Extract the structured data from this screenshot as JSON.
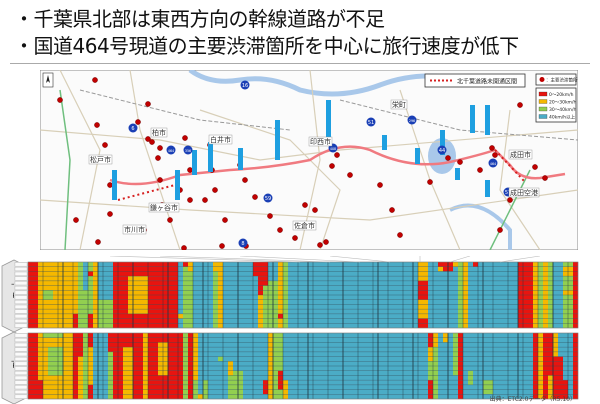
{
  "bullets": [
    "・千葉県北部は東西方向の幹線道路が不足",
    "・国道464号現道の主要渋滞箇所を中心に旅行速度が低下"
  ],
  "map": {
    "legend_unopened": "北千葉道路未開通区間",
    "legend_congestion": "主要渋滞箇所",
    "cities": [
      "松戸市",
      "柏市",
      "白井市",
      "印西市",
      "栄町",
      "成田市",
      "鎌ヶ谷市",
      "市川市",
      "佐倉市",
      "成田空港"
    ],
    "route_numbers": [
      "6",
      "16",
      "464",
      "356",
      "408",
      "51",
      "296",
      "44",
      "464",
      "57",
      "8",
      "59"
    ],
    "colors": {
      "route_line": "#f07a80",
      "congestion_dot": "#c00000",
      "intersection_label": "#1e9fe0",
      "shield": "#1a3fb5"
    }
  },
  "chart_data": {
    "type": "heatmap",
    "speed_legend": [
      {
        "label": "0～20km/h",
        "code": "R",
        "color": "#e8140f"
      },
      {
        "label": "20～30km/h",
        "code": "O",
        "color": "#f5b800"
      },
      {
        "label": "30～40km/h",
        "code": "G",
        "color": "#92cf50"
      },
      {
        "label": "40km/h以上",
        "code": "B",
        "color": "#4bacc6"
      }
    ],
    "columns": 110,
    "rows": 14,
    "blocks": [
      {
        "label": "下り",
        "segments": [
          [
            0,
            1,
            "R"
          ],
          [
            2,
            2,
            "O"
          ],
          [
            3,
            9,
            "O"
          ],
          [
            10,
            10,
            "G"
          ],
          [
            11,
            11,
            "B"
          ],
          [
            12,
            12,
            "G"
          ],
          [
            13,
            13,
            "O"
          ],
          [
            14,
            16,
            "B"
          ],
          [
            17,
            29,
            "R"
          ],
          [
            30,
            30,
            "B"
          ],
          [
            31,
            32,
            "G"
          ],
          [
            33,
            36,
            "B"
          ],
          [
            37,
            37,
            "G"
          ],
          [
            38,
            38,
            "O"
          ],
          [
            39,
            44,
            "B"
          ],
          [
            45,
            45,
            "B"
          ],
          [
            46,
            46,
            "O"
          ],
          [
            47,
            47,
            "G"
          ],
          [
            48,
            49,
            "G"
          ],
          [
            50,
            50,
            "O"
          ],
          [
            51,
            51,
            "G"
          ],
          [
            52,
            77,
            "B"
          ],
          [
            78,
            79,
            "O"
          ],
          [
            80,
            97,
            "B"
          ],
          [
            98,
            100,
            "R"
          ],
          [
            101,
            101,
            "O"
          ],
          [
            102,
            102,
            "G"
          ],
          [
            103,
            103,
            "O"
          ],
          [
            104,
            104,
            "G"
          ],
          [
            105,
            106,
            "B"
          ],
          [
            107,
            108,
            "G"
          ],
          [
            109,
            109,
            "R"
          ]
        ],
        "patches": [
          [
            3,
            4,
            6,
            7,
            "G"
          ],
          [
            9,
            9,
            11,
            13,
            "R"
          ],
          [
            11,
            11,
            6,
            13,
            "G"
          ],
          [
            12,
            12,
            2,
            2,
            "R"
          ],
          [
            12,
            12,
            11,
            13,
            "R"
          ],
          [
            14,
            16,
            8,
            13,
            "G"
          ],
          [
            20,
            23,
            3,
            10,
            "O"
          ],
          [
            30,
            30,
            11,
            11,
            "O"
          ],
          [
            31,
            31,
            0,
            0,
            "R"
          ],
          [
            32,
            32,
            0,
            1,
            "O"
          ],
          [
            37,
            37,
            0,
            1,
            "O"
          ],
          [
            45,
            45,
            0,
            2,
            "R"
          ],
          [
            46,
            46,
            0,
            6,
            "R"
          ],
          [
            47,
            47,
            0,
            4,
            "R"
          ],
          [
            48,
            49,
            0,
            3,
            "B"
          ],
          [
            50,
            50,
            11,
            11,
            "R"
          ],
          [
            78,
            79,
            4,
            7,
            "R"
          ],
          [
            78,
            79,
            12,
            13,
            "R"
          ],
          [
            82,
            82,
            0,
            0,
            "R"
          ],
          [
            82,
            82,
            1,
            1,
            "O"
          ],
          [
            83,
            84,
            0,
            1,
            "R"
          ],
          [
            85,
            85,
            0,
            0,
            "O"
          ],
          [
            86,
            86,
            0,
            13,
            "G"
          ],
          [
            87,
            87,
            0,
            13,
            "O"
          ],
          [
            89,
            89,
            0,
            0,
            "R"
          ],
          [
            107,
            108,
            1,
            2,
            "O"
          ],
          [
            107,
            108,
            6,
            6,
            "O"
          ]
        ]
      },
      {
        "label": "上り",
        "segments": [
          [
            0,
            1,
            "R"
          ],
          [
            2,
            2,
            "O"
          ],
          [
            3,
            9,
            "O"
          ],
          [
            10,
            10,
            "O"
          ],
          [
            11,
            11,
            "G"
          ],
          [
            12,
            12,
            "O"
          ],
          [
            13,
            15,
            "B"
          ],
          [
            16,
            16,
            "G"
          ],
          [
            17,
            29,
            "R"
          ],
          [
            30,
            30,
            "R"
          ],
          [
            31,
            31,
            "G"
          ],
          [
            32,
            32,
            "R"
          ],
          [
            33,
            33,
            "O"
          ],
          [
            34,
            34,
            "B"
          ],
          [
            35,
            35,
            "G"
          ],
          [
            36,
            39,
            "B"
          ],
          [
            40,
            40,
            "B"
          ],
          [
            41,
            42,
            "B"
          ],
          [
            43,
            47,
            "B"
          ],
          [
            48,
            48,
            "O"
          ],
          [
            49,
            49,
            "G"
          ],
          [
            50,
            50,
            "G"
          ],
          [
            51,
            51,
            "B"
          ],
          [
            52,
            79,
            "B"
          ],
          [
            80,
            80,
            "R"
          ],
          [
            81,
            81,
            "G"
          ],
          [
            82,
            84,
            "B"
          ],
          [
            85,
            85,
            "G"
          ],
          [
            86,
            86,
            "R"
          ],
          [
            87,
            100,
            "B"
          ],
          [
            101,
            101,
            "R"
          ],
          [
            102,
            102,
            "O"
          ],
          [
            103,
            104,
            "R"
          ],
          [
            105,
            105,
            "O"
          ],
          [
            106,
            107,
            "B"
          ],
          [
            108,
            108,
            "B"
          ],
          [
            109,
            109,
            "R"
          ]
        ],
        "patches": [
          [
            2,
            2,
            10,
            13,
            "R"
          ],
          [
            3,
            6,
            0,
            0,
            "G"
          ],
          [
            4,
            6,
            3,
            8,
            "G"
          ],
          [
            9,
            9,
            0,
            13,
            "R"
          ],
          [
            10,
            10,
            0,
            4,
            "R"
          ],
          [
            12,
            12,
            0,
            2,
            "R"
          ],
          [
            12,
            12,
            11,
            13,
            "R"
          ],
          [
            16,
            16,
            0,
            3,
            "R"
          ],
          [
            19,
            20,
            3,
            13,
            "O"
          ],
          [
            23,
            23,
            0,
            13,
            "O"
          ],
          [
            26,
            27,
            2,
            8,
            "O"
          ],
          [
            33,
            33,
            10,
            13,
            "G"
          ],
          [
            34,
            34,
            13,
            13,
            "O"
          ],
          [
            35,
            35,
            0,
            9,
            "B"
          ],
          [
            38,
            38,
            5,
            5,
            "G"
          ],
          [
            40,
            40,
            6,
            8,
            "O"
          ],
          [
            40,
            40,
            9,
            13,
            "G"
          ],
          [
            41,
            42,
            8,
            13,
            "G"
          ],
          [
            47,
            47,
            10,
            12,
            "R"
          ],
          [
            50,
            50,
            8,
            11,
            "R"
          ],
          [
            51,
            51,
            10,
            13,
            "O"
          ],
          [
            80,
            80,
            3,
            5,
            "O"
          ],
          [
            80,
            80,
            6,
            9,
            "G"
          ],
          [
            81,
            81,
            0,
            2,
            "O"
          ],
          [
            83,
            83,
            0,
            1,
            "O"
          ],
          [
            85,
            85,
            9,
            13,
            "B"
          ],
          [
            88,
            88,
            8,
            10,
            "G"
          ],
          [
            91,
            92,
            10,
            12,
            "G"
          ],
          [
            104,
            104,
            9,
            13,
            "O"
          ],
          [
            105,
            105,
            5,
            13,
            "R"
          ],
          [
            106,
            106,
            5,
            13,
            "R"
          ],
          [
            107,
            107,
            10,
            13,
            "R"
          ]
        ]
      }
    ]
  },
  "source": "出典：ETC2.0データ（R5.10）"
}
